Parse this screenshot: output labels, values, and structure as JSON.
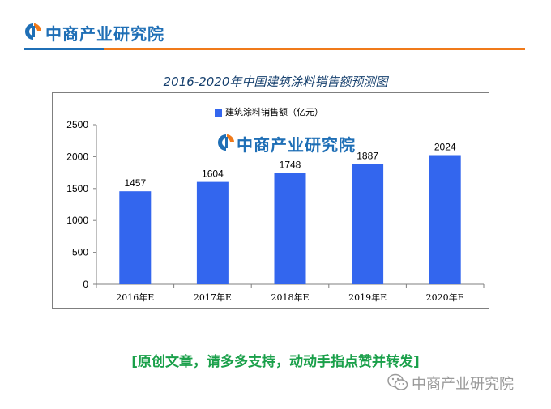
{
  "header": {
    "logo_text": "中商产业研究院",
    "logo_icon": "zhongshang-logo-icon",
    "colors": {
      "brand_blue": "#1f6fb6",
      "accent_orange": "#f07a1a"
    }
  },
  "chart_data": {
    "type": "bar",
    "title": "2016-2020年中国建筑涂料销售额预测图",
    "categories": [
      "2016年E",
      "2017年E",
      "2018年E",
      "2019年E",
      "2020年E"
    ],
    "series": [
      {
        "name": "建筑涂料销售额（亿元）",
        "values": [
          1457,
          1604,
          1748,
          1887,
          2024
        ],
        "color": "#3366ee"
      }
    ],
    "data_labels": [
      "1457",
      "1604",
      "1748",
      "1887",
      "2024"
    ],
    "y_ticks": [
      "0",
      "500",
      "1000",
      "1500",
      "2000",
      "2500"
    ],
    "ylim": [
      0,
      2500
    ],
    "xlabel": "",
    "ylabel": "",
    "grid": false,
    "legend_position": "top-center"
  },
  "watermark": {
    "text": "中商产业研究院"
  },
  "footer": {
    "note": "[原创文章，请多多支持，动动手指点赞并转发]",
    "wechat_text": "中商产业研究院",
    "wechat_icon": "wechat-icon"
  }
}
